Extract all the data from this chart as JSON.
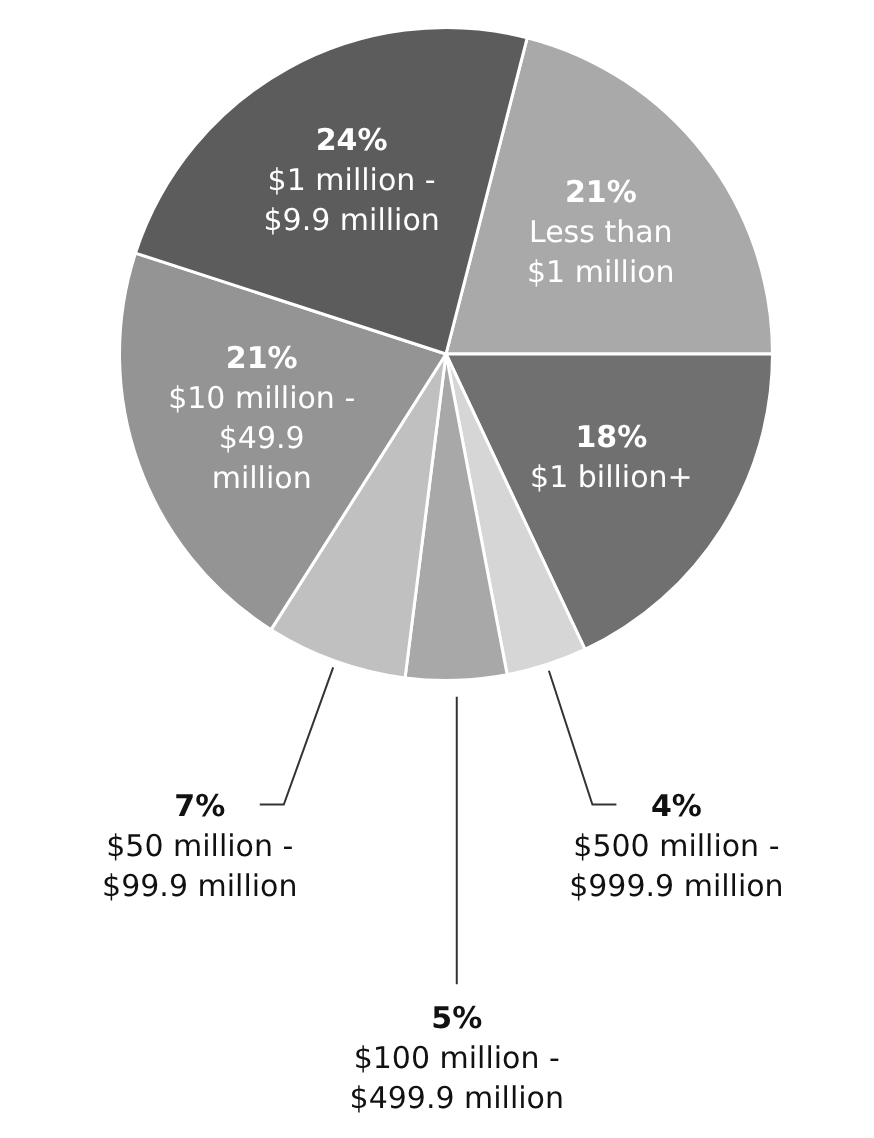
{
  "chart_data": {
    "type": "pie",
    "categories": [
      "Less than\n$1 million",
      "$1 billion+",
      "$500 million -\n$999.9 million",
      "$100 million -\n$499.9 million",
      "$50 million -\n$99.9 million",
      "$10 million -\n$49.9\nmillion",
      "$1 million -\n$9.9 million"
    ],
    "values": [
      21,
      18,
      4,
      5,
      7,
      21,
      24
    ],
    "colors": [
      "#a9a9a9",
      "#707070",
      "#d6d6d6",
      "#a8a8a8",
      "#c0c0c0",
      "#949494",
      "#5c5c5c"
    ],
    "value_labels": [
      "21%",
      "18%",
      "4%",
      "5%",
      "7%",
      "21%",
      "24%"
    ],
    "legend": false
  }
}
